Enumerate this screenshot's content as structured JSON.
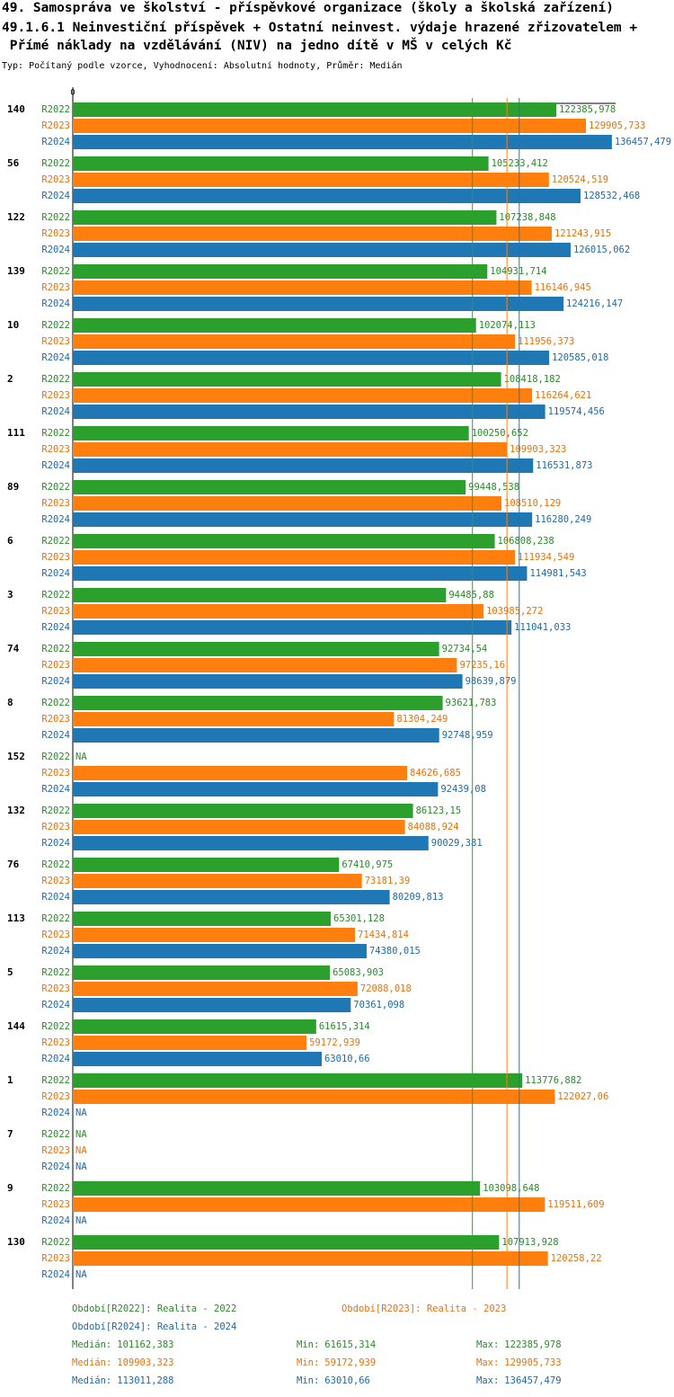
{
  "chart_data": {
    "type": "grouped-hbar",
    "title": [
      "49. Samospráva ve školství - příspěvkové organizace (školy a školská zařízení)",
      "49.1.6.1 Neinvestiční příspěvek + Ostatní neinvest. výdaje hrazené zřizovatelem +",
      " Přímé náklady na vzdělávání (NIV) na jedno dítě v MŠ v celých Kč"
    ],
    "subtitle": "Typ: Počítaný podle vzorce, Vyhodnocení: Absolutní hodnoty, Průměr: Medián",
    "categories": [
      "140",
      "56",
      "122",
      "139",
      "10",
      "2",
      "111",
      "89",
      "6",
      "3",
      "74",
      "8",
      "152",
      "132",
      "76",
      "113",
      "5",
      "144",
      "1",
      "7",
      "9",
      "130"
    ],
    "xlim": [
      0,
      137400
    ],
    "xticks": [
      0
    ],
    "stat_names": [
      "Medián:",
      "Min:",
      "Max:"
    ],
    "series": [
      {
        "name": "R2022",
        "color": "#2ca02c",
        "legend": "Období[R2022]: Realita - 2022",
        "values": [
          122385.978,
          105233.412,
          107238.848,
          104931.714,
          102074.113,
          108418.182,
          100250.652,
          99448.538,
          106808.238,
          94485.88,
          92734.54,
          93621.783,
          null,
          86123.15,
          67410.975,
          65301.128,
          65083.903,
          61615.314,
          113776.882,
          null,
          103098.648,
          107913.928
        ],
        "value_labels": [
          "122385,978",
          "105233,412",
          "107238,848",
          "104931,714",
          "102074,113",
          "108418,182",
          "100250,652",
          "99448,538",
          "106808,238",
          "94485,88",
          "92734,54",
          "93621,783",
          "NA",
          "86123,15",
          "67410,975",
          "65301,128",
          "65083,903",
          "61615,314",
          "113776,882",
          "NA",
          "103098,648",
          "107913,928"
        ],
        "stats": [
          101162.383,
          61615.314,
          122385.978
        ],
        "stats_labels": [
          "101162,383",
          "61615,314",
          "122385,978"
        ]
      },
      {
        "name": "R2023",
        "color": "#ff7f0e",
        "legend": "Období[R2023]: Realita - 2023",
        "values": [
          129905.733,
          120524.519,
          121243.915,
          116146.945,
          111956.373,
          116264.621,
          109903.323,
          108510.129,
          111934.549,
          103985.272,
          97235.16,
          81304.249,
          84626.685,
          84088.924,
          73181.39,
          71434.814,
          72088.018,
          59172.939,
          122027.06,
          null,
          119511.609,
          120258.22
        ],
        "value_labels": [
          "129905,733",
          "120524,519",
          "121243,915",
          "116146,945",
          "111956,373",
          "116264,621",
          "109903,323",
          "108510,129",
          "111934,549",
          "103985,272",
          "97235,16",
          "81304,249",
          "84626,685",
          "84088,924",
          "73181,39",
          "71434,814",
          "72088,018",
          "59172,939",
          "122027,06",
          "NA",
          "119511,609",
          "120258,22"
        ],
        "stats": [
          109903.323,
          59172.939,
          129905.733
        ],
        "stats_labels": [
          "109903,323",
          "59172,939",
          "129905,733"
        ]
      },
      {
        "name": "R2024",
        "color": "#1f77b4",
        "legend": "Období[R2024]: Realita - 2024",
        "values": [
          136457.479,
          128532.468,
          126015.062,
          124216.147,
          120585.018,
          119574.456,
          116531.873,
          116280.249,
          114981.543,
          111041.033,
          98639.879,
          92748.959,
          92439.08,
          90029.381,
          80209.813,
          74380.015,
          70361.098,
          63010.66,
          null,
          null,
          null,
          null
        ],
        "value_labels": [
          "136457,479",
          "128532,468",
          "126015,062",
          "124216,147",
          "120585,018",
          "119574,456",
          "116531,873",
          "116280,249",
          "114981,543",
          "111041,033",
          "98639,879",
          "92748,959",
          "92439,08",
          "90029,381",
          "80209,813",
          "74380,015",
          "70361,098",
          "63010,66",
          "NA",
          "NA",
          "NA",
          "NA"
        ],
        "stats": [
          113011.288,
          63010.66,
          136457.479
        ],
        "stats_labels": [
          "113011,288",
          "63010,66",
          "136457,479"
        ]
      }
    ]
  }
}
